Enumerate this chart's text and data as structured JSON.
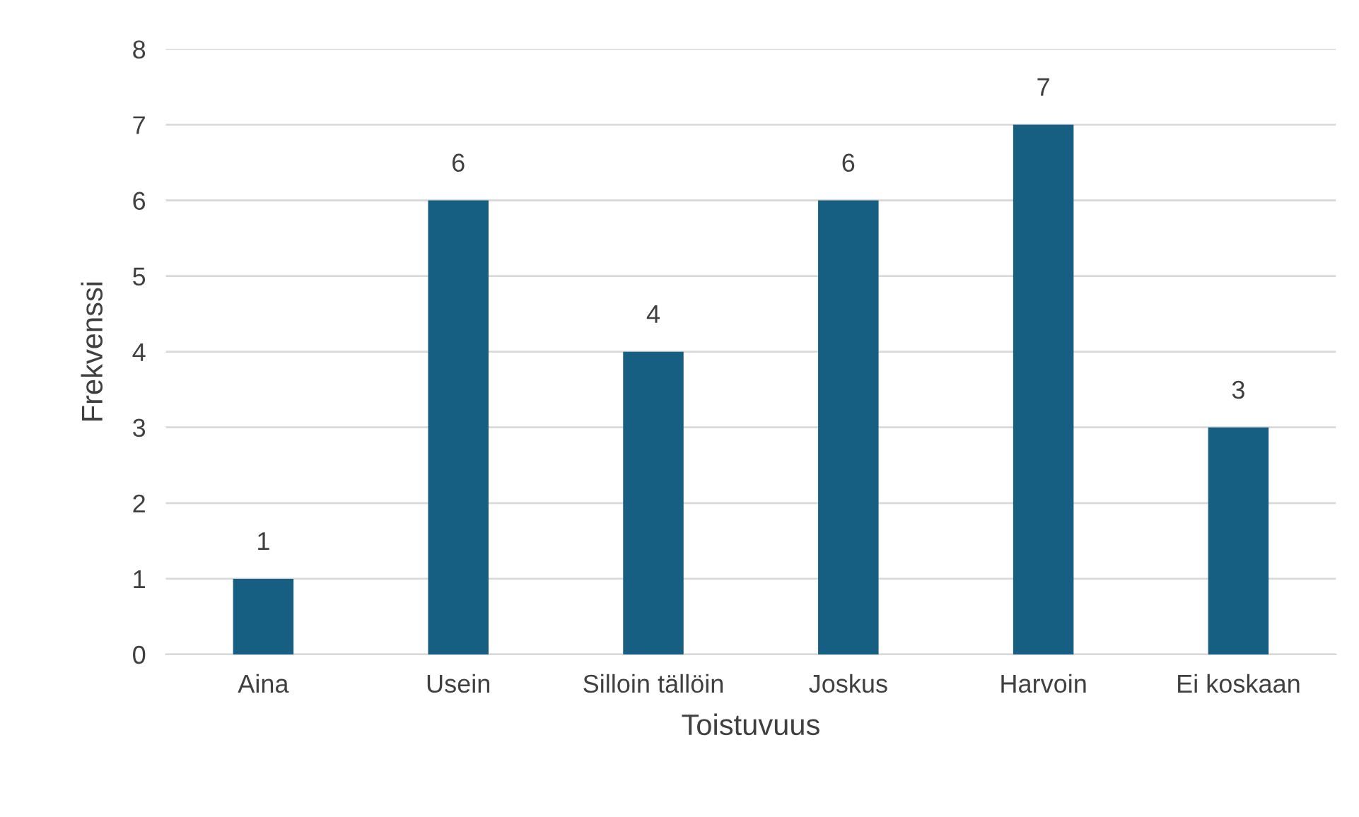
{
  "chart_data": {
    "type": "bar",
    "xlabel": "Toistuvuus",
    "ylabel": "Frekvenssi",
    "categories": [
      "Aina",
      "Usein",
      "Silloin tällöin",
      "Joskus",
      "Harvoin",
      "Ei koskaan"
    ],
    "values": [
      1,
      6,
      4,
      6,
      7,
      3
    ],
    "color": "#175f82",
    "ylim": [
      0,
      8
    ],
    "yticks": [
      0,
      1,
      2,
      3,
      4,
      5,
      6,
      7,
      8
    ],
    "grid": "y",
    "data_labels": true,
    "legend": false
  }
}
